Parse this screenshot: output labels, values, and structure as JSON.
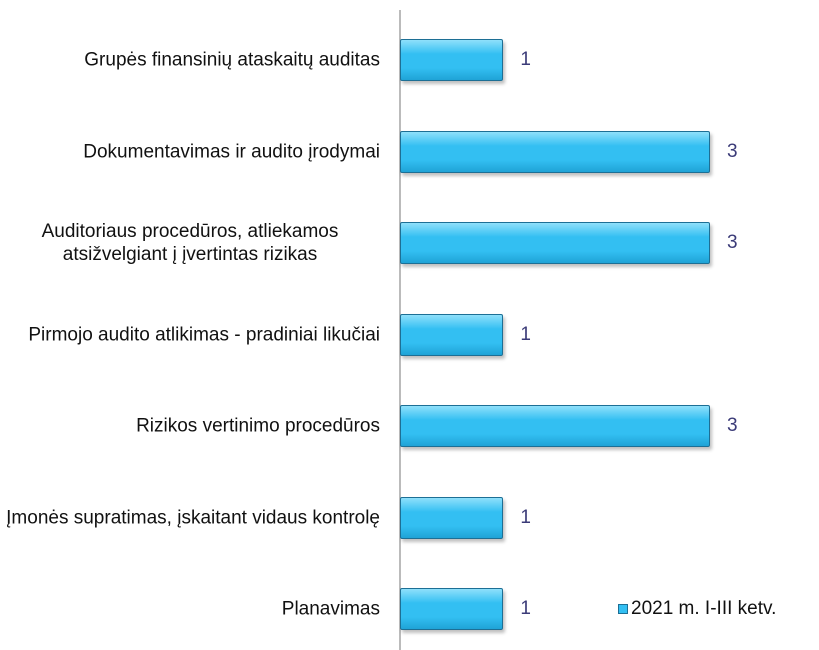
{
  "chart_data": {
    "type": "bar",
    "orientation": "horizontal",
    "categories": [
      "Grupės finansinių ataskaitų auditas",
      "Dokumentavimas ir audito įrodymai",
      "Auditoriaus procedūros, atliekamos atsižvelgiant į įvertintas rizikas",
      "Pirmojo audito atlikimas - pradiniai likučiai",
      "Rizikos vertinimo procedūros",
      "Įmonės supratimas, įskaitant vidaus kontrolę",
      "Planavimas"
    ],
    "series": [
      {
        "name": "2021 m. I-III ketv.",
        "color": "#33bff2",
        "values": [
          1,
          3,
          3,
          1,
          3,
          1,
          1
        ]
      }
    ],
    "legend": "bottom-right"
  }
}
